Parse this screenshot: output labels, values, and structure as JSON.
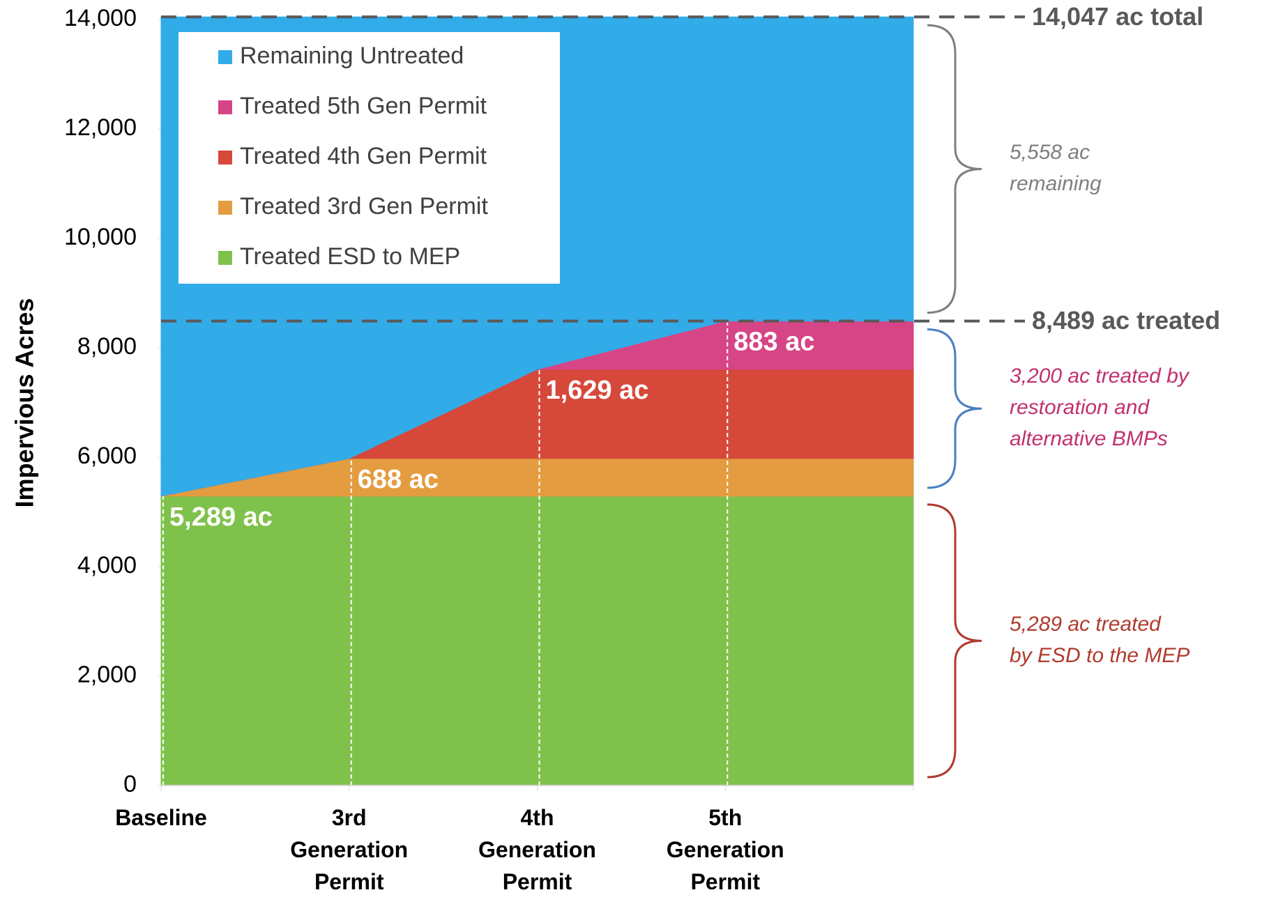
{
  "chart_data": {
    "type": "stacked_area",
    "y_label": "Impervious Acres",
    "categories": [
      "Baseline",
      "3rd Generation Permit",
      "4th Generation Permit",
      "5th Generation Permit",
      null
    ],
    "series": [
      {
        "name": "Treated ESD to MEP",
        "color": "#7fc24b",
        "values": [
          5289,
          5289,
          5289,
          5289,
          5289
        ],
        "value_labels": [
          "5,289 ac",
          null,
          null,
          null,
          null
        ]
      },
      {
        "name": "Treated 3rd Gen Permit",
        "color": "#e39c3f",
        "values": [
          0,
          688,
          688,
          688,
          688
        ],
        "value_labels": [
          null,
          "688 ac",
          null,
          null,
          null
        ]
      },
      {
        "name": "Treated 4th Gen Permit",
        "color": "#d6483a",
        "values": [
          0,
          0,
          1629,
          1629,
          1629
        ],
        "value_labels": [
          null,
          null,
          "1,629 ac",
          null,
          null
        ]
      },
      {
        "name": "Treated 5th Gen Permit",
        "color": "#d64585",
        "values": [
          0,
          0,
          0,
          883,
          883
        ],
        "value_labels": [
          null,
          null,
          null,
          "883 ac",
          null
        ]
      },
      {
        "name": "Remaining Untreated",
        "color": "#32abe9",
        "values": [
          8758,
          8070,
          6441,
          5558,
          5558
        ]
      }
    ],
    "ylim": [
      0,
      14000
    ],
    "yticks": [
      0,
      {
        "value": 2000,
        "label": "2,000"
      },
      {
        "value": 4000,
        "label": "4,000"
      },
      {
        "value": 6000,
        "label": "6,000"
      },
      {
        "value": 8000,
        "label": "8,000"
      },
      {
        "value": 10000,
        "label": "10,000"
      },
      {
        "value": 12000,
        "label": "12,000"
      },
      {
        "value": 14000,
        "label": "14,000"
      }
    ],
    "reference_lines": [
      {
        "value": 14047,
        "label": "14,047 ac total"
      },
      {
        "value": 8489,
        "label": "8,489 ac treated"
      }
    ],
    "brackets": [
      {
        "range": [
          8489,
          14047
        ],
        "brace_color": "#7f7f7f",
        "text_color": "#7f7f7f",
        "label": [
          "5,558 ac",
          "remaining"
        ]
      },
      {
        "range": [
          5289,
          8489
        ],
        "brace_color": "#4a7fc1",
        "text_color": "#c0306e",
        "label": [
          "3,200 ac treated by",
          "restoration and",
          "alternative BMPs"
        ]
      },
      {
        "range": [
          0,
          5289
        ],
        "brace_color": "#b03a2e",
        "text_color": "#b03a2e",
        "label": [
          "5,289 ac treated",
          "by ESD to the MEP"
        ]
      }
    ]
  }
}
